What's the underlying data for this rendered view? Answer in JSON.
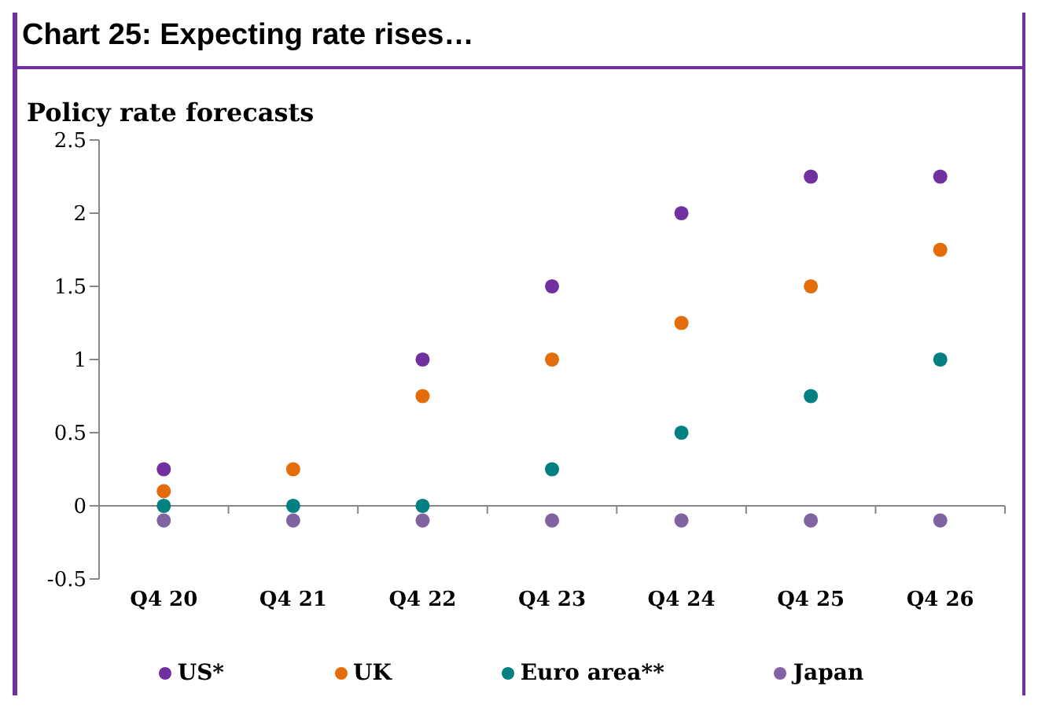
{
  "chart_data": {
    "type": "scatter",
    "title": "Chart 25: Expecting rate rises…",
    "subtitle": "Policy rate forecasts",
    "categories": [
      "Q4 20",
      "Q4 21",
      "Q4 22",
      "Q4 23",
      "Q4 24",
      "Q4 25",
      "Q4 26"
    ],
    "series": [
      {
        "name": "US*",
        "color": "#7030a0",
        "values": [
          0.25,
          null,
          1,
          1.5,
          2,
          2.25,
          2.25
        ]
      },
      {
        "name": "UK",
        "color": "#e46c0a",
        "values": [
          0.1,
          0.25,
          0.75,
          1,
          1.25,
          1.5,
          1.75
        ]
      },
      {
        "name": "Euro area**",
        "color": "#008080",
        "values": [
          0,
          0,
          0,
          0.25,
          0.5,
          0.75,
          1
        ]
      },
      {
        "name": "Japan",
        "color": "#8064a2",
        "values": [
          -0.1,
          -0.1,
          -0.1,
          -0.1,
          -0.1,
          -0.1,
          -0.1
        ]
      }
    ],
    "ylim": [
      -0.5,
      2.5
    ],
    "yticks": [
      -0.5,
      0,
      0.5,
      1,
      1.5,
      2,
      2.5
    ],
    "grid": false,
    "ref_lines": [
      {
        "axis": "y",
        "value": 0
      }
    ],
    "legend": "bottom",
    "marker": "circle"
  }
}
